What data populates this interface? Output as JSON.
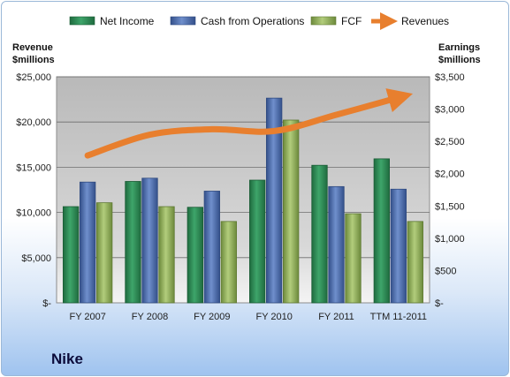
{
  "chart_data": {
    "type": "bar",
    "company": "Nike",
    "categories": [
      "FY 2007",
      "FY 2008",
      "FY 2009",
      "FY 2010",
      "FY 2011",
      "TTM 11-2011"
    ],
    "left_axis": {
      "label_line1": "Revenue",
      "label_line2": "$millions",
      "ylim": [
        0,
        25000
      ],
      "ticks": [
        0,
        5000,
        10000,
        15000,
        20000,
        25000
      ],
      "tick_labels": [
        "$-",
        "$5,000",
        "$10,000",
        "$15,000",
        "$20,000",
        "$25,000"
      ]
    },
    "right_axis": {
      "label_line1": "Earnings",
      "label_line2": "$millions",
      "ylim": [
        0,
        3500
      ],
      "ticks": [
        0,
        500,
        1000,
        1500,
        2000,
        2500,
        3000,
        3500
      ],
      "tick_labels": [
        "$-",
        "$500",
        "$1,000",
        "$1,500",
        "$2,000",
        "$2,500",
        "$3,000",
        "$3,500"
      ]
    },
    "series": [
      {
        "name": "Net Income",
        "kind": "bar",
        "axis": "right",
        "color": "#2e8b57",
        "values": [
          1490,
          1880,
          1480,
          1900,
          2130,
          2230
        ]
      },
      {
        "name": "Cash from Operations",
        "kind": "bar",
        "axis": "right",
        "color": "#4f71b0",
        "values": [
          1870,
          1930,
          1730,
          3170,
          1800,
          1760
        ]
      },
      {
        "name": "FCF",
        "kind": "bar",
        "axis": "right",
        "color": "#8fb05a",
        "values": [
          1550,
          1490,
          1260,
          2830,
          1380,
          1260
        ]
      },
      {
        "name": "Revenues",
        "kind": "line",
        "axis": "left",
        "color": "#e87f2e",
        "values": [
          16300,
          18600,
          19200,
          19000,
          20800,
          22700
        ]
      }
    ],
    "legend_position": "top",
    "grid": true,
    "plot_background": "#bdbdbd"
  }
}
